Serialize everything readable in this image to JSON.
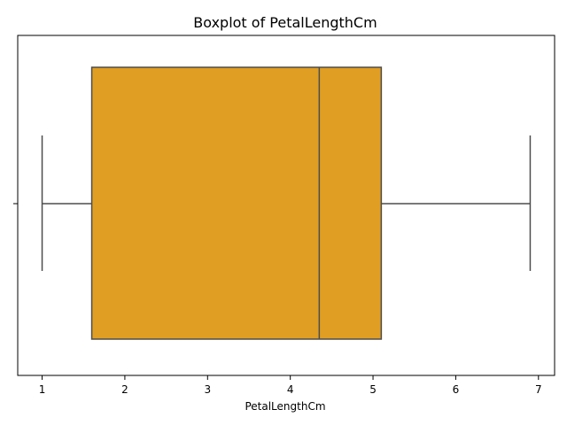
{
  "chart_data": {
    "type": "box",
    "title": "Boxplot of PetalLengthCm",
    "xlabel": "PetalLengthCm",
    "ylabel": "",
    "xlim": [
      0.705,
      7.195
    ],
    "xticks": [
      "1",
      "2",
      "3",
      "4",
      "5",
      "6",
      "7"
    ],
    "xtick_values": [
      1,
      2,
      3,
      4,
      5,
      6,
      7
    ],
    "orientation": "horizontal",
    "box": {
      "whisker_low": 1.0,
      "q1": 1.6,
      "median": 4.35,
      "q3": 5.1,
      "whisker_high": 6.9
    },
    "fill_color": "#e09e22",
    "line_color": "#4d4d4d",
    "grid": false
  }
}
